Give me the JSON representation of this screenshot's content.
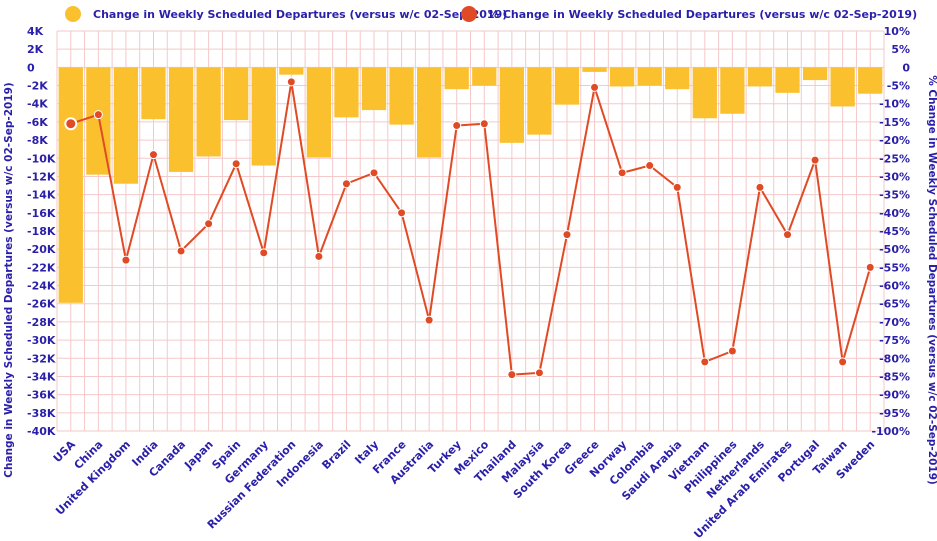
{
  "chart_data": {
    "type": "bar+line",
    "categories": [
      "USA",
      "China",
      "United Kingdom",
      "India",
      "Canada",
      "Japan",
      "Spain",
      "Germany",
      "Russian Federation",
      "Indonesia",
      "Brazil",
      "Italy",
      "France",
      "Australia",
      "Turkey",
      "Mexico",
      "Thailand",
      "Malaysia",
      "South Korea",
      "Greece",
      "Norway",
      "Colombia",
      "Saudi Arabia",
      "Vietnam",
      "Philippines",
      "Netherlands",
      "United Arab Emirates",
      "Portugal",
      "Taiwan",
      "Sweden"
    ],
    "series": [
      {
        "name": "Change in Weekly Scheduled Departures (versus w/c 02-Sep-2019)",
        "type": "bar",
        "axis": "left",
        "color": "#fbc02d",
        "values": [
          -25900,
          -11800,
          -12800,
          -5700,
          -11500,
          -9800,
          -5800,
          -10800,
          -800,
          -9900,
          -5500,
          -4700,
          -6300,
          -9900,
          -2400,
          -2000,
          -8300,
          -7400,
          -4100,
          -500,
          -2100,
          -2000,
          -2400,
          -5600,
          -5100,
          -2100,
          -2800,
          -1400,
          -4300,
          -2900
        ]
      },
      {
        "name": "% Change in Weekly Scheduled Departures (versus w/c 02-Sep-2019)",
        "type": "line",
        "axis": "right",
        "color": "#e04a24",
        "values": [
          -15.5,
          -13,
          -53,
          -24,
          -50.5,
          -43,
          -26.5,
          -51,
          -4,
          -52,
          -32,
          -29,
          -40,
          -69.5,
          -16,
          -15.5,
          -84.5,
          -84,
          -46,
          -5.5,
          -29,
          -27,
          -33,
          -81,
          -78,
          -33,
          -46,
          -25.5,
          -81,
          -55
        ]
      }
    ],
    "y_left": {
      "label": "Change in Weekly Scheduled Departures (versus w/c 02-Sep-2019)",
      "range": [
        -40000,
        4000
      ],
      "ticks": [
        "4K",
        "2K",
        "0",
        "-2K",
        "-4K",
        "-6K",
        "-8K",
        "-10K",
        "-12K",
        "-14K",
        "-16K",
        "-18K",
        "-20K",
        "-22K",
        "-24K",
        "-26K",
        "-28K",
        "-30K",
        "-32K",
        "-34K",
        "-36K",
        "-38K",
        "-40K"
      ]
    },
    "y_right": {
      "label": "% Change in Weekly Scheduled Departures (versus w/c 02-Sep-2019)",
      "range": [
        -100,
        10
      ],
      "ticks": [
        "10%",
        "5%",
        "0",
        "-5%",
        "-10%",
        "-15%",
        "-20%",
        "-25%",
        "-30%",
        "-35%",
        "-40%",
        "-45%",
        "-50%",
        "-55%",
        "-60%",
        "-65%",
        "-70%",
        "-75%",
        "-80%",
        "-85%",
        "-90%",
        "-95%",
        "-100%"
      ]
    },
    "grid": true,
    "legend": "top-center"
  }
}
